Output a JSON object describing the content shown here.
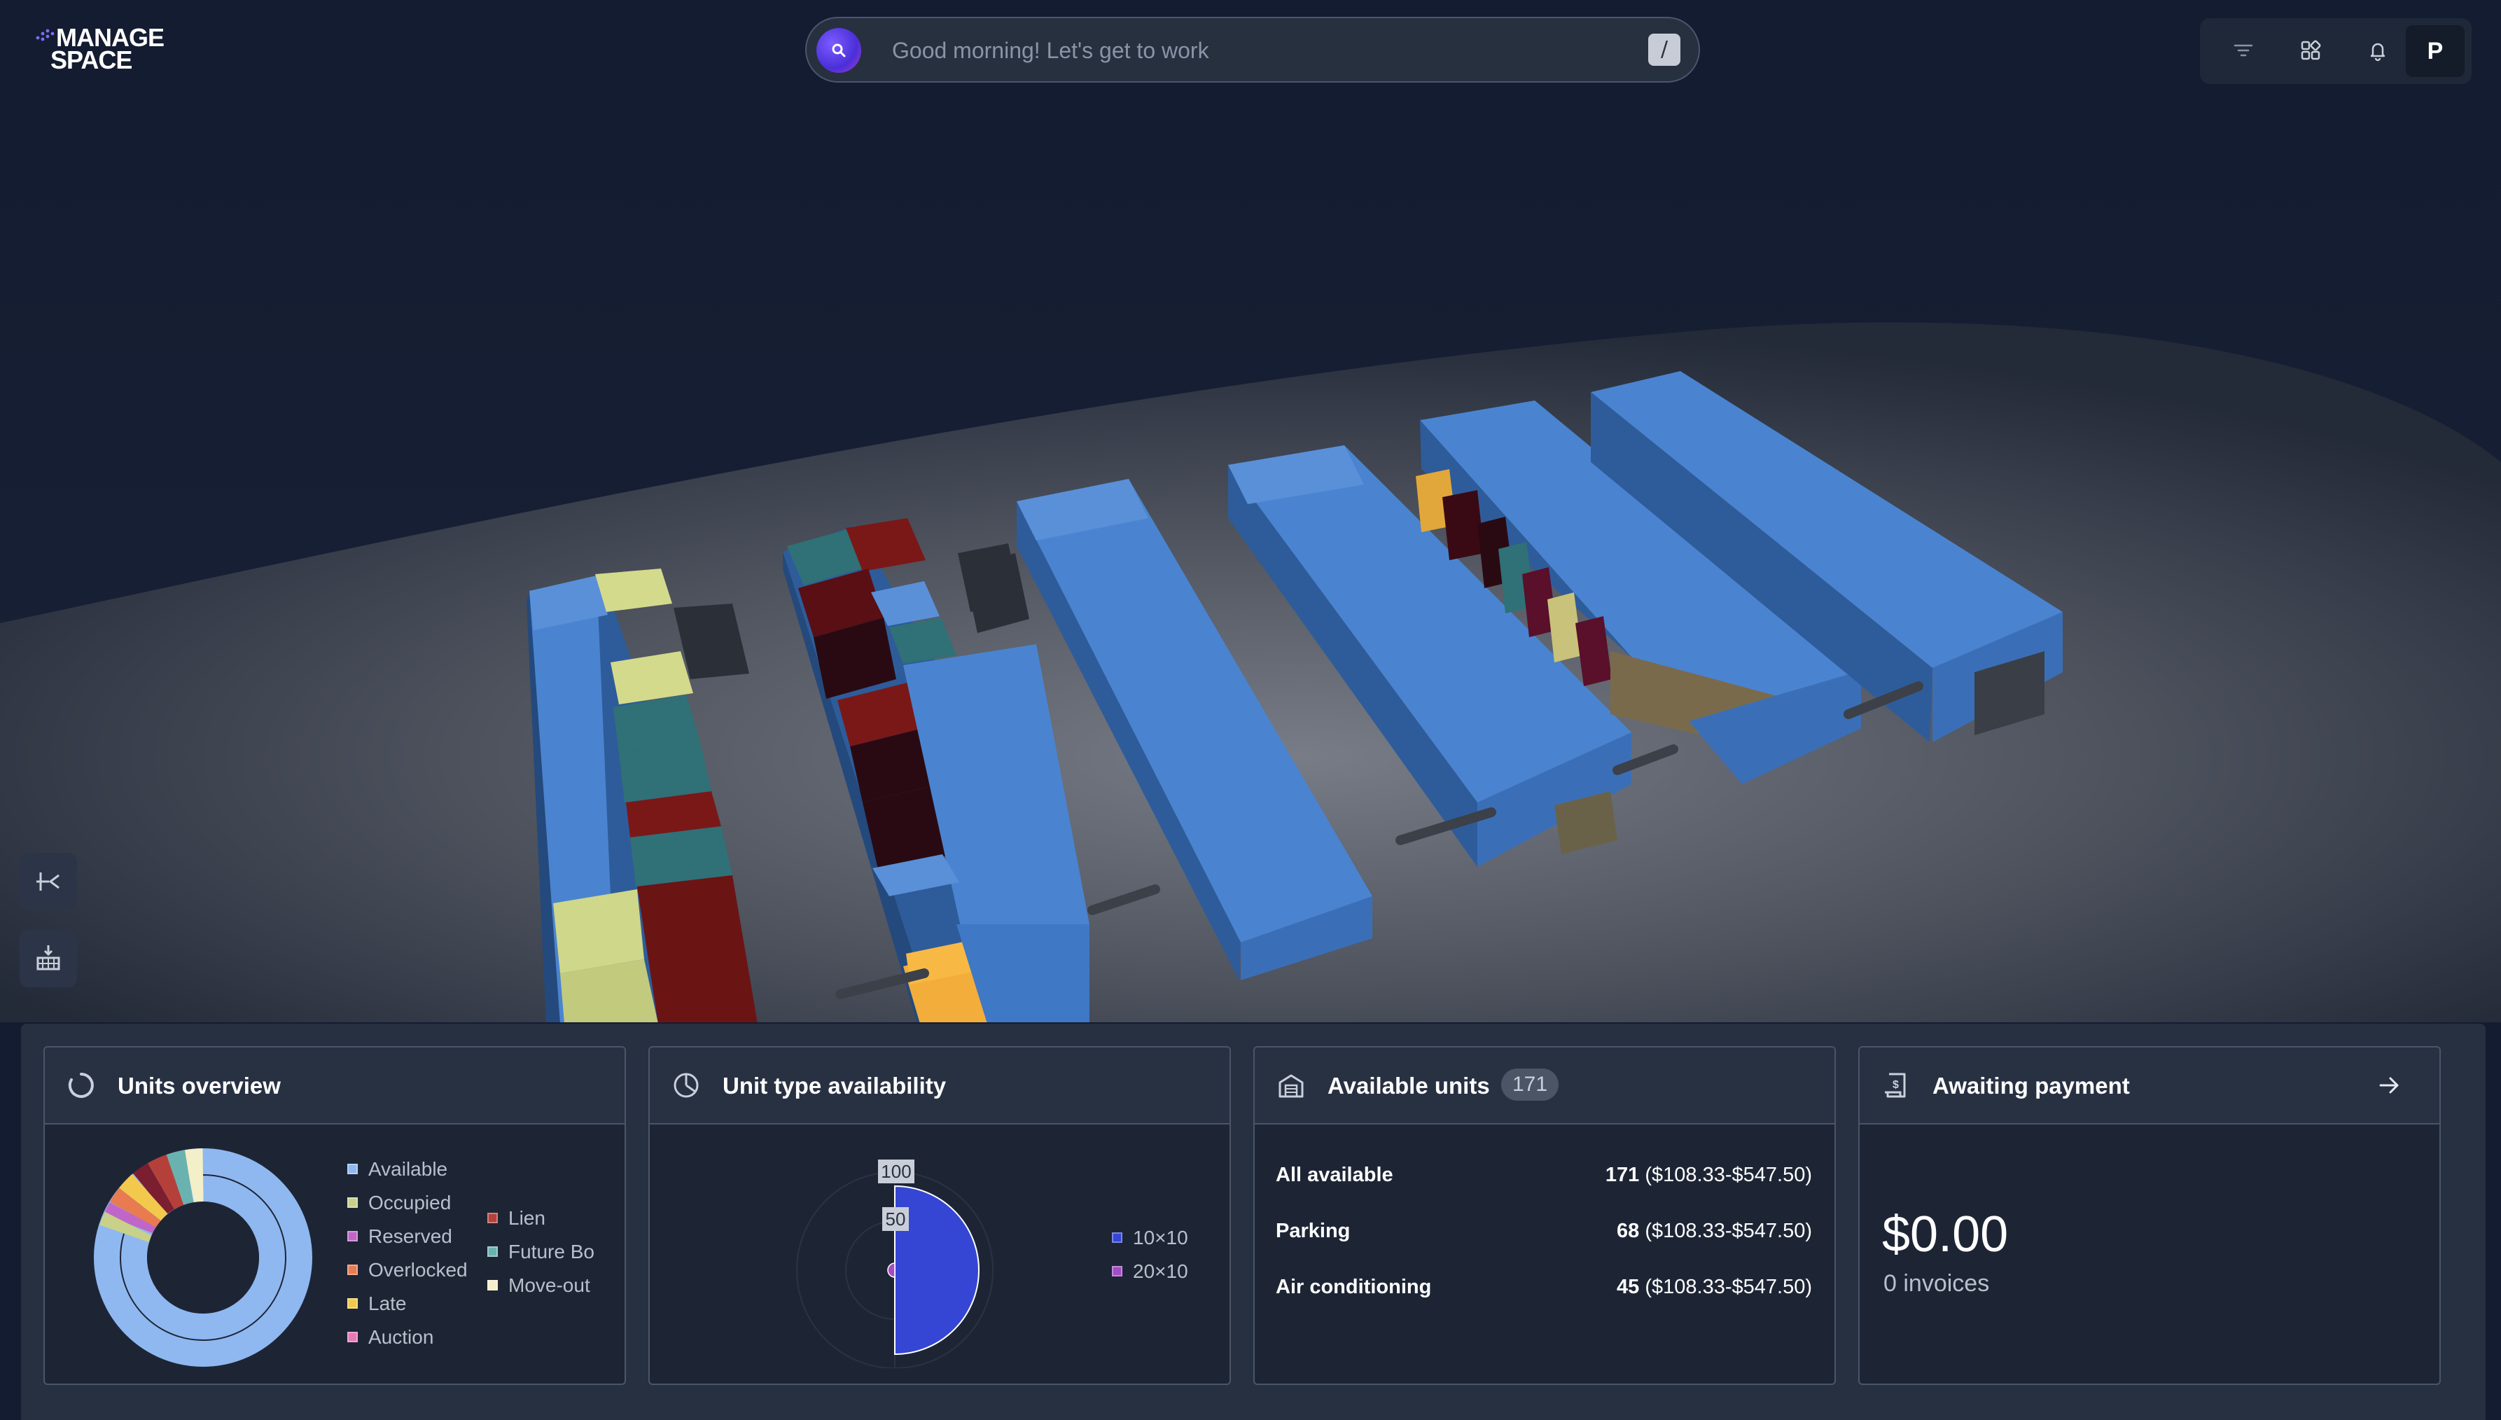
{
  "app": {
    "logo_line1": "MANAGE",
    "logo_line2": "SPACE"
  },
  "search": {
    "placeholder": "Good morning! Let's get to work",
    "shortcut": "/"
  },
  "toolbar": {
    "icons": [
      "filter-icon",
      "widgets-icon",
      "bell-icon"
    ],
    "avatar_initial": "P"
  },
  "scene": {
    "tools": [
      "collapse-icon",
      "floor-plan-icon"
    ]
  },
  "cards": {
    "units_overview": {
      "title": "Units overview",
      "legend_left": [
        "Available",
        "Occupied",
        "Reserved",
        "Overlocked",
        "Late",
        "Auction"
      ],
      "legend_right": [
        "Lien",
        "Future Bo",
        "Move-out"
      ],
      "colors": {
        "Available": "#8fb8f0",
        "Occupied": "#c8d08a",
        "Reserved": "#c066c8",
        "Overlocked": "#e87b50",
        "Late": "#f2c94c",
        "Auction": "#e879b8",
        "Lien": "#b5403a",
        "Future Bo": "#6ab2b0",
        "Move-out": "#f3efc8"
      }
    },
    "unit_type_availability": {
      "title": "Unit type availability",
      "legend": [
        "10×10",
        "20×10"
      ],
      "colors": [
        "#3546d4",
        "#a24cc6"
      ],
      "tick_labels": [
        "100",
        "50"
      ]
    },
    "available_units": {
      "title": "Available units",
      "badge": "171",
      "rows": [
        {
          "label": "All available",
          "count": "171",
          "range": "($108.33-$547.50)"
        },
        {
          "label": "Parking",
          "count": "68",
          "range": "($108.33-$547.50)"
        },
        {
          "label": "Air conditioning",
          "count": "45",
          "range": "($108.33-$547.50)"
        }
      ]
    },
    "awaiting_payment": {
      "title": "Awaiting payment",
      "amount": "$0.00",
      "invoices": "0 invoices"
    }
  }
}
